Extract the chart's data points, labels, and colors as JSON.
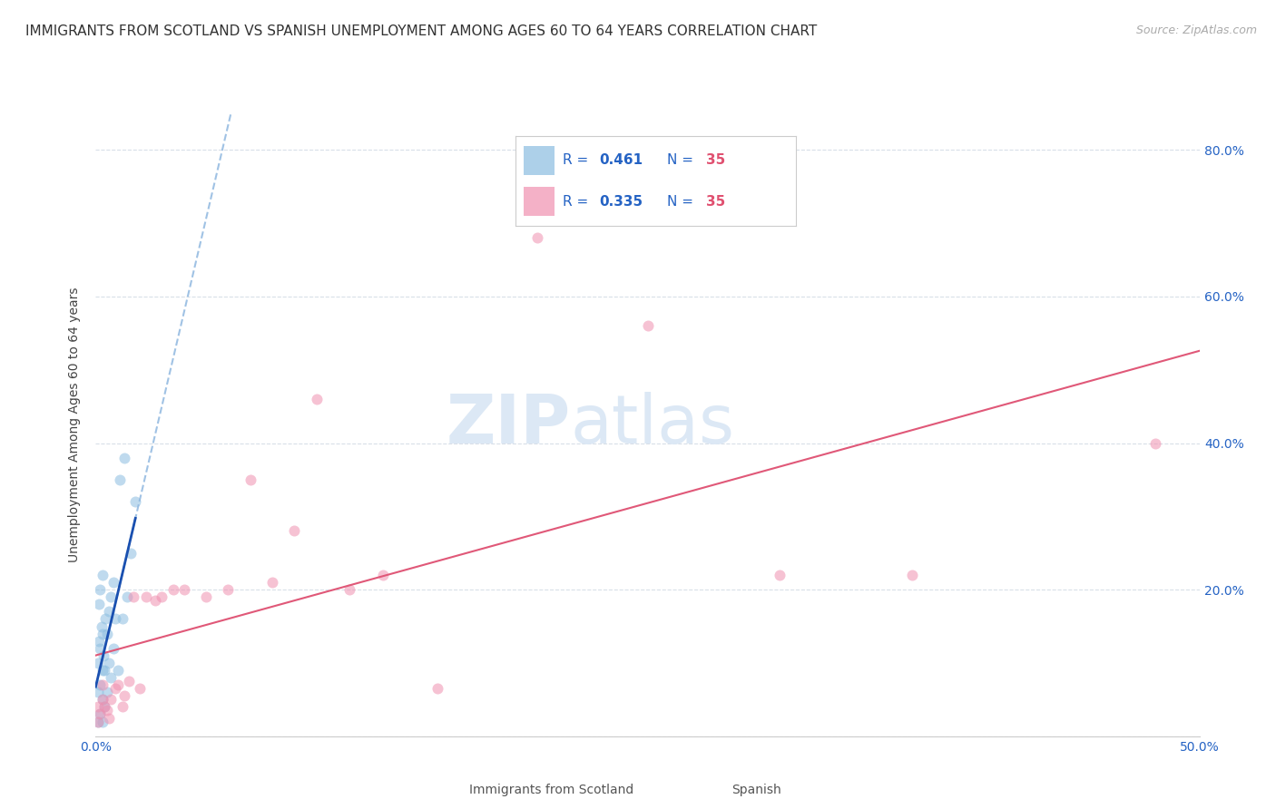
{
  "title": "IMMIGRANTS FROM SCOTLAND VS SPANISH UNEMPLOYMENT AMONG AGES 60 TO 64 YEARS CORRELATION CHART",
  "source": "Source: ZipAtlas.com",
  "ylabel": "Unemployment Among Ages 60 to 64 years",
  "xlim": [
    0.0,
    0.5
  ],
  "ylim": [
    0.0,
    0.85
  ],
  "x_ticks": [
    0.0,
    0.1,
    0.2,
    0.3,
    0.4,
    0.5
  ],
  "y_ticks": [
    0.0,
    0.2,
    0.4,
    0.6,
    0.8
  ],
  "y_tick_labels_right": [
    "",
    "20.0%",
    "40.0%",
    "60.0%",
    "80.0%"
  ],
  "x_tick_labels": [
    "0.0%",
    "",
    "",
    "",
    "",
    "50.0%"
  ],
  "scotland_color": "#8bbde0",
  "spanish_color": "#f090b0",
  "scotland_trend_solid_color": "#1a50b0",
  "scotland_trend_dash_color": "#90b8e0",
  "spanish_trend_color": "#e05878",
  "grid_color": "#d8dfe8",
  "bg_color": "#ffffff",
  "watermark_zip": "ZIP",
  "watermark_atlas": "atlas",
  "watermark_color": "#dce8f5",
  "legend_blue": "#2563c4",
  "legend_red": "#e05070",
  "title_fontsize": 11,
  "tick_fontsize": 10,
  "marker_size": 75,
  "marker_alpha": 0.55,
  "scotland_x": [
    0.001,
    0.001,
    0.001,
    0.0015,
    0.0015,
    0.002,
    0.002,
    0.002,
    0.002,
    0.0025,
    0.003,
    0.003,
    0.003,
    0.003,
    0.003,
    0.0035,
    0.004,
    0.004,
    0.0045,
    0.005,
    0.005,
    0.006,
    0.006,
    0.007,
    0.007,
    0.008,
    0.008,
    0.009,
    0.01,
    0.011,
    0.012,
    0.013,
    0.014,
    0.016,
    0.018
  ],
  "scotland_y": [
    0.02,
    0.06,
    0.1,
    0.13,
    0.18,
    0.03,
    0.07,
    0.12,
    0.2,
    0.15,
    0.02,
    0.05,
    0.09,
    0.14,
    0.22,
    0.11,
    0.04,
    0.09,
    0.16,
    0.06,
    0.14,
    0.1,
    0.17,
    0.08,
    0.19,
    0.12,
    0.21,
    0.16,
    0.09,
    0.35,
    0.16,
    0.38,
    0.19,
    0.25,
    0.32
  ],
  "spanish_x": [
    0.001,
    0.001,
    0.002,
    0.003,
    0.003,
    0.004,
    0.005,
    0.006,
    0.007,
    0.009,
    0.01,
    0.012,
    0.013,
    0.015,
    0.017,
    0.02,
    0.023,
    0.027,
    0.03,
    0.035,
    0.04,
    0.05,
    0.06,
    0.07,
    0.08,
    0.09,
    0.1,
    0.115,
    0.13,
    0.155,
    0.2,
    0.25,
    0.31,
    0.37,
    0.48
  ],
  "spanish_y": [
    0.02,
    0.04,
    0.03,
    0.05,
    0.07,
    0.04,
    0.035,
    0.025,
    0.05,
    0.065,
    0.07,
    0.04,
    0.055,
    0.075,
    0.19,
    0.065,
    0.19,
    0.185,
    0.19,
    0.2,
    0.2,
    0.19,
    0.2,
    0.35,
    0.21,
    0.28,
    0.46,
    0.2,
    0.22,
    0.065,
    0.68,
    0.56,
    0.22,
    0.22,
    0.4
  ]
}
